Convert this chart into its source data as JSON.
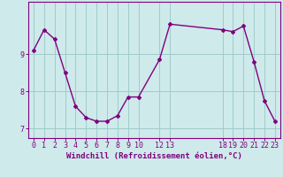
{
  "x": [
    0,
    1,
    2,
    3,
    4,
    5,
    6,
    7,
    8,
    9,
    10,
    12,
    13,
    18,
    19,
    20,
    21,
    22,
    23
  ],
  "y": [
    9.1,
    9.65,
    9.4,
    8.5,
    7.6,
    7.3,
    7.2,
    7.2,
    7.35,
    7.85,
    7.85,
    8.85,
    9.8,
    9.65,
    9.6,
    9.75,
    8.8,
    7.75,
    7.2
  ],
  "line_color": "#800080",
  "marker_color": "#800080",
  "bg_color": "#ceeaea",
  "grid_color": "#a0cccc",
  "axis_color": "#800080",
  "xlabel": "Windchill (Refroidissement éolien,°C)",
  "xticks": [
    0,
    1,
    2,
    3,
    4,
    5,
    6,
    7,
    8,
    9,
    10,
    12,
    13,
    18,
    19,
    20,
    21,
    22,
    23
  ],
  "yticks": [
    7,
    8,
    9
  ],
  "ylim": [
    6.75,
    10.4
  ],
  "xlim": [
    -0.5,
    23.5
  ],
  "tick_fontsize": 6,
  "xlabel_fontsize": 6.5
}
